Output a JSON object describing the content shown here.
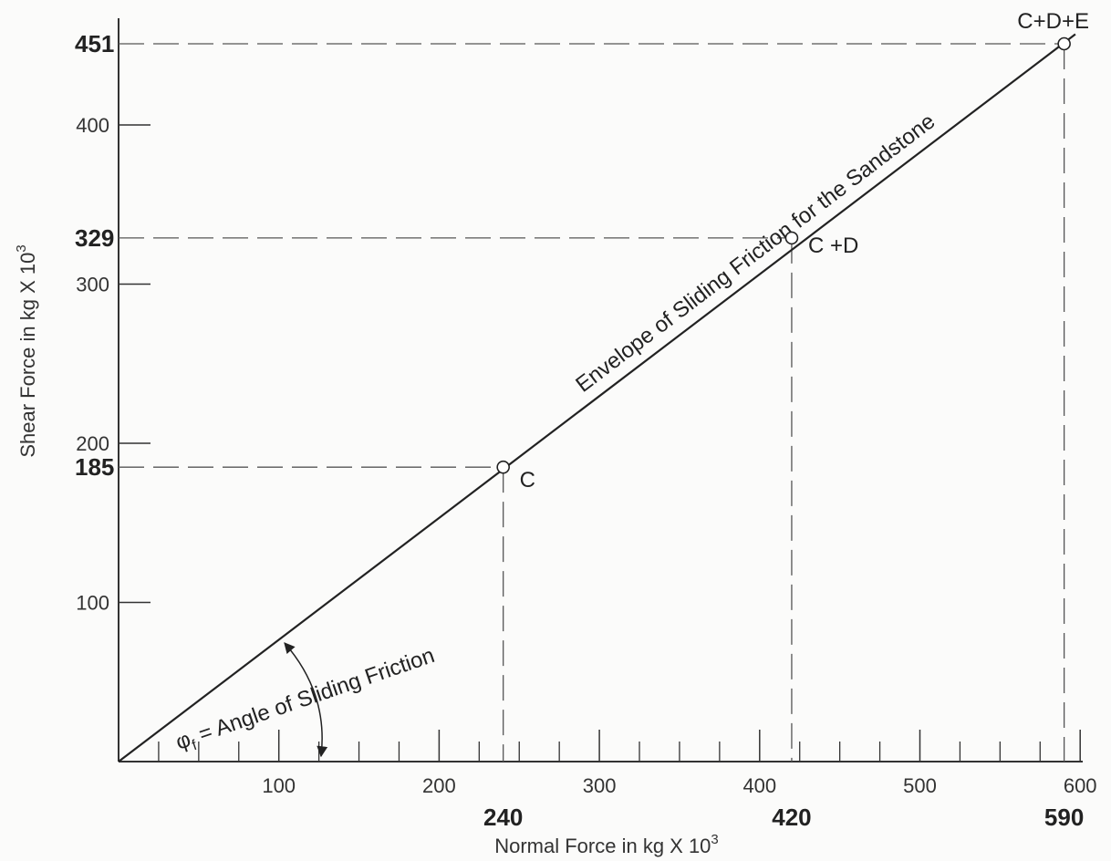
{
  "chart_data": {
    "type": "line",
    "x_axis": {
      "label": "Normal Force in kg X 10",
      "label_exp": "3",
      "range": [
        0,
        600
      ],
      "ticks": [
        100,
        200,
        300,
        400,
        500,
        600
      ],
      "tick_labels": [
        "100",
        "200",
        "300",
        "400",
        "500",
        "600"
      ],
      "highlight_ticks": [
        240,
        420,
        590
      ],
      "highlight_labels": [
        "240",
        "420",
        "590"
      ]
    },
    "y_axis": {
      "label": "Shear Force in kg X 10",
      "label_exp": "3",
      "range": [
        0,
        451
      ],
      "ticks": [
        100,
        200,
        300,
        400
      ],
      "tick_labels": [
        "100",
        "200",
        "300",
        "400"
      ],
      "highlight_ticks": [
        185,
        329,
        451
      ],
      "highlight_labels": [
        "185",
        "329",
        "451"
      ]
    },
    "envelope": {
      "label": "Envelope of Sliding Friction for the Sandstone",
      "x": [
        0,
        597
      ],
      "y": [
        0,
        457
      ]
    },
    "points": [
      {
        "x": 240,
        "y": 185,
        "label": "C"
      },
      {
        "x": 420,
        "y": 329,
        "label": "C +D"
      },
      {
        "x": 590,
        "y": 451,
        "label": "C+D+E"
      }
    ],
    "angle_annotation": {
      "symbol": "φ",
      "subscript": "f",
      "text": " = Angle of Sliding Friction"
    },
    "grid": false
  }
}
